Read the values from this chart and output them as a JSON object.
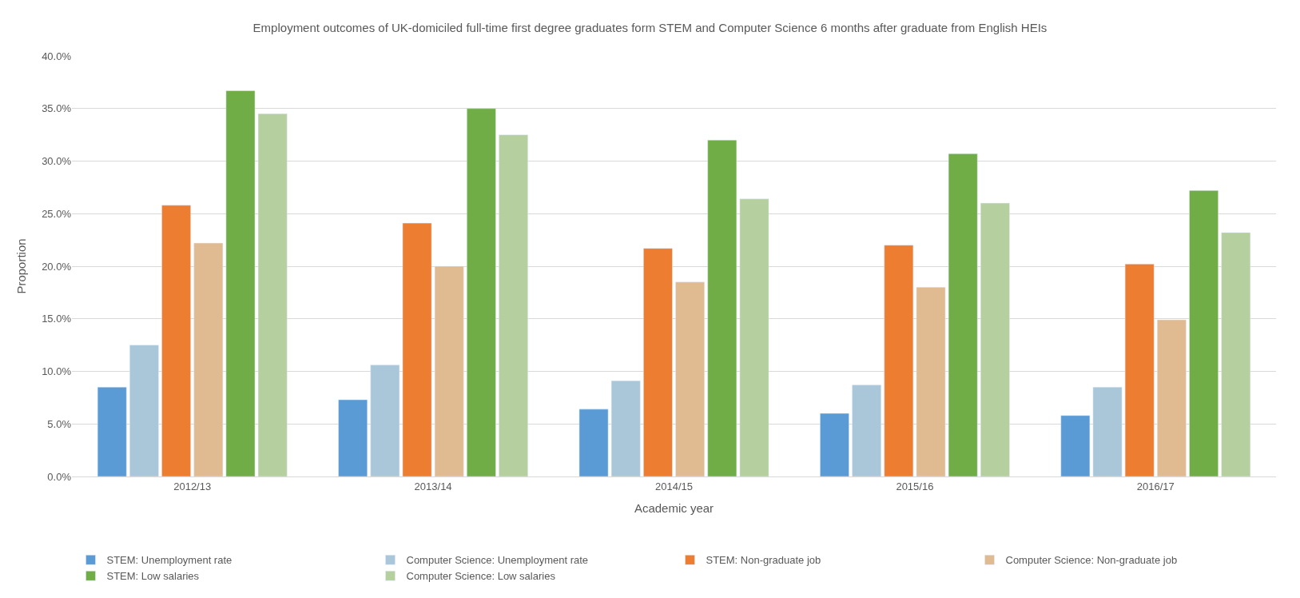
{
  "chart_data": {
    "type": "bar",
    "title": "Employment outcomes of UK-domiciled full-time first degree graduates form STEM and Computer Science 6 months after graduate from English HEIs",
    "xlabel": "Academic year",
    "ylabel": "Proportion",
    "categories": [
      "2012/13",
      "2013/14",
      "2014/15",
      "2015/16",
      "2016/17"
    ],
    "series": [
      {
        "name": "STEM: Unemployment rate",
        "color": "#5b9bd5",
        "values": [
          8.5,
          7.3,
          6.4,
          6.0,
          5.8
        ]
      },
      {
        "name": "Computer Science: Unemployment rate",
        "color": "#a9c7d9",
        "values": [
          12.5,
          10.6,
          9.1,
          8.7,
          8.5
        ]
      },
      {
        "name": "STEM: Non-graduate job",
        "color": "#ed7d31",
        "values": [
          25.8,
          24.1,
          21.7,
          22.0,
          20.2
        ]
      },
      {
        "name": "Computer Science: Non-graduate job",
        "color": "#e0bb92",
        "values": [
          22.2,
          20.0,
          18.5,
          18.0,
          14.9
        ]
      },
      {
        "name": "STEM: Low salaries",
        "color": "#70ad47",
        "values": [
          36.7,
          35.0,
          32.0,
          30.7,
          27.2
        ]
      },
      {
        "name": "Computer Science: Low salaries",
        "color": "#b5cf9e",
        "values": [
          34.5,
          32.5,
          26.4,
          26.0,
          23.2
        ]
      }
    ],
    "ylim": [
      0,
      40
    ],
    "yticks": [
      {
        "value": 0,
        "label": "0.0%"
      },
      {
        "value": 5,
        "label": "5.0%"
      },
      {
        "value": 10,
        "label": "10.0%"
      },
      {
        "value": 15,
        "label": "15.0%"
      },
      {
        "value": 20,
        "label": "20.0%"
      },
      {
        "value": 25,
        "label": "25.0%"
      },
      {
        "value": 30,
        "label": "30.0%"
      },
      {
        "value": 35,
        "label": "35.0%"
      },
      {
        "value": 40,
        "label": "40.0%"
      }
    ],
    "grid": "y",
    "legend": "bottom"
  }
}
